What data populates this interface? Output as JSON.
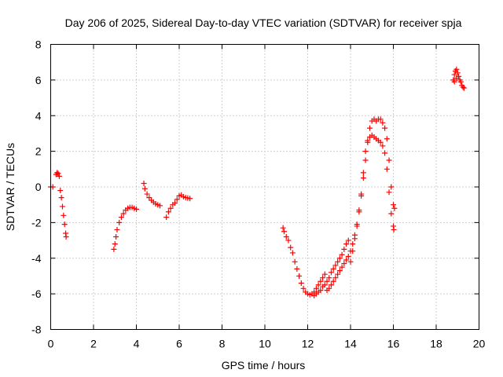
{
  "chart_data": {
    "type": "scatter",
    "title": "Day 206 of 2025, Sidereal Day-to-day VTEC variation (SDTVAR) for receiver spja",
    "xlabel": "GPS time / hours",
    "ylabel": "SDTVAR / TECUs",
    "xlim": [
      0,
      20
    ],
    "ylim": [
      -8,
      8
    ],
    "xticks": [
      "0",
      "2",
      "4",
      "6",
      "8",
      "10",
      "12",
      "14",
      "16",
      "18",
      "20"
    ],
    "yticks": [
      "-8",
      "-6",
      "-4",
      "-2",
      "0",
      "2",
      "4",
      "6",
      "8"
    ],
    "grid": true,
    "marker": "+",
    "color": "#ff0000",
    "series": [
      {
        "name": "SDTVAR",
        "points": [
          [
            0.0,
            0.0
          ],
          [
            0.1,
            0.0
          ],
          [
            0.25,
            0.7
          ],
          [
            0.3,
            0.8
          ],
          [
            0.35,
            0.75
          ],
          [
            0.4,
            0.6
          ],
          [
            0.45,
            -0.2
          ],
          [
            0.5,
            -0.6
          ],
          [
            0.55,
            -1.1
          ],
          [
            0.6,
            -1.6
          ],
          [
            0.65,
            -2.1
          ],
          [
            0.7,
            -2.6
          ],
          [
            0.72,
            -2.8
          ],
          [
            2.95,
            -3.5
          ],
          [
            3.0,
            -3.2
          ],
          [
            3.05,
            -2.8
          ],
          [
            3.1,
            -2.4
          ],
          [
            3.2,
            -2.0
          ],
          [
            3.3,
            -1.7
          ],
          [
            3.4,
            -1.5
          ],
          [
            3.5,
            -1.3
          ],
          [
            3.6,
            -1.2
          ],
          [
            3.7,
            -1.15
          ],
          [
            3.8,
            -1.15
          ],
          [
            3.9,
            -1.2
          ],
          [
            4.0,
            -1.25
          ],
          [
            4.35,
            0.2
          ],
          [
            4.4,
            -0.1
          ],
          [
            4.5,
            -0.4
          ],
          [
            4.6,
            -0.6
          ],
          [
            4.7,
            -0.75
          ],
          [
            4.8,
            -0.85
          ],
          [
            4.9,
            -0.95
          ],
          [
            5.0,
            -1.0
          ],
          [
            5.1,
            -1.05
          ],
          [
            5.4,
            -1.7
          ],
          [
            5.5,
            -1.4
          ],
          [
            5.6,
            -1.2
          ],
          [
            5.7,
            -1.0
          ],
          [
            5.8,
            -0.9
          ],
          [
            5.9,
            -0.7
          ],
          [
            6.0,
            -0.5
          ],
          [
            6.1,
            -0.45
          ],
          [
            6.2,
            -0.55
          ],
          [
            6.3,
            -0.6
          ],
          [
            6.4,
            -0.62
          ],
          [
            6.5,
            -0.65
          ],
          [
            10.85,
            -2.3
          ],
          [
            10.9,
            -2.5
          ],
          [
            11.0,
            -2.8
          ],
          [
            11.1,
            -3.0
          ],
          [
            11.2,
            -3.4
          ],
          [
            11.3,
            -3.7
          ],
          [
            11.4,
            -4.2
          ],
          [
            11.5,
            -4.6
          ],
          [
            11.6,
            -5.0
          ],
          [
            11.7,
            -5.4
          ],
          [
            11.8,
            -5.7
          ],
          [
            11.9,
            -5.9
          ],
          [
            12.0,
            -6.0
          ],
          [
            12.1,
            -6.05
          ],
          [
            12.2,
            -6.0
          ],
          [
            12.3,
            -5.9
          ],
          [
            12.4,
            -5.7
          ],
          [
            12.5,
            -5.5
          ],
          [
            12.6,
            -5.3
          ],
          [
            12.7,
            -5.1
          ],
          [
            12.8,
            -4.9
          ],
          [
            12.3,
            -6.1
          ],
          [
            12.4,
            -6.0
          ],
          [
            12.5,
            -5.9
          ],
          [
            12.6,
            -5.8
          ],
          [
            12.7,
            -5.6
          ],
          [
            12.8,
            -5.5
          ],
          [
            12.9,
            -5.3
          ],
          [
            13.0,
            -5.1
          ],
          [
            13.1,
            -4.8
          ],
          [
            13.2,
            -4.6
          ],
          [
            13.3,
            -4.4
          ],
          [
            13.4,
            -4.2
          ],
          [
            13.5,
            -4.0
          ],
          [
            13.6,
            -3.8
          ],
          [
            13.7,
            -3.5
          ],
          [
            13.8,
            -3.2
          ],
          [
            13.9,
            -3.0
          ],
          [
            12.9,
            -5.8
          ],
          [
            13.0,
            -5.7
          ],
          [
            13.1,
            -5.5
          ],
          [
            13.2,
            -5.3
          ],
          [
            13.3,
            -5.1
          ],
          [
            13.4,
            -4.9
          ],
          [
            13.5,
            -4.7
          ],
          [
            13.6,
            -4.5
          ],
          [
            13.7,
            -4.3
          ],
          [
            13.8,
            -4.1
          ],
          [
            13.9,
            -3.9
          ],
          [
            14.0,
            -3.6
          ],
          [
            14.1,
            -3.2
          ],
          [
            14.2,
            -2.7
          ],
          [
            14.3,
            -2.1
          ],
          [
            14.4,
            -1.4
          ],
          [
            14.5,
            -0.5
          ],
          [
            14.6,
            0.5
          ],
          [
            14.7,
            1.5
          ],
          [
            14.8,
            2.5
          ],
          [
            14.9,
            3.3
          ],
          [
            15.0,
            3.7
          ],
          [
            15.1,
            3.8
          ],
          [
            15.2,
            3.7
          ],
          [
            15.3,
            3.8
          ],
          [
            15.4,
            3.8
          ],
          [
            15.5,
            3.6
          ],
          [
            15.6,
            3.3
          ],
          [
            15.7,
            2.7
          ],
          [
            15.8,
            1.5
          ],
          [
            15.9,
            0.0
          ],
          [
            16.0,
            -1.0
          ],
          [
            16.05,
            -1.2
          ],
          [
            14.0,
            -4.2
          ],
          [
            14.1,
            -3.6
          ],
          [
            14.2,
            -2.9
          ],
          [
            14.3,
            -2.2
          ],
          [
            14.4,
            -1.3
          ],
          [
            14.5,
            -0.4
          ],
          [
            14.6,
            0.8
          ],
          [
            14.7,
            2.0
          ],
          [
            14.8,
            2.6
          ],
          [
            14.9,
            2.8
          ],
          [
            15.0,
            2.9
          ],
          [
            15.1,
            2.8
          ],
          [
            15.2,
            2.7
          ],
          [
            15.3,
            2.6
          ],
          [
            15.4,
            2.5
          ],
          [
            15.5,
            2.3
          ],
          [
            15.6,
            1.9
          ],
          [
            15.7,
            1.0
          ],
          [
            15.8,
            -0.3
          ],
          [
            15.9,
            -1.5
          ],
          [
            16.0,
            -2.2
          ],
          [
            16.02,
            -2.4
          ],
          [
            18.8,
            6.0
          ],
          [
            18.85,
            6.3
          ],
          [
            18.9,
            6.5
          ],
          [
            18.95,
            6.6
          ],
          [
            19.0,
            6.4
          ],
          [
            19.05,
            6.2
          ],
          [
            19.1,
            6.0
          ],
          [
            19.15,
            5.9
          ],
          [
            19.2,
            5.7
          ],
          [
            19.25,
            5.6
          ],
          [
            19.3,
            5.55
          ],
          [
            18.85,
            5.9
          ],
          [
            18.95,
            6.1
          ]
        ]
      }
    ]
  }
}
